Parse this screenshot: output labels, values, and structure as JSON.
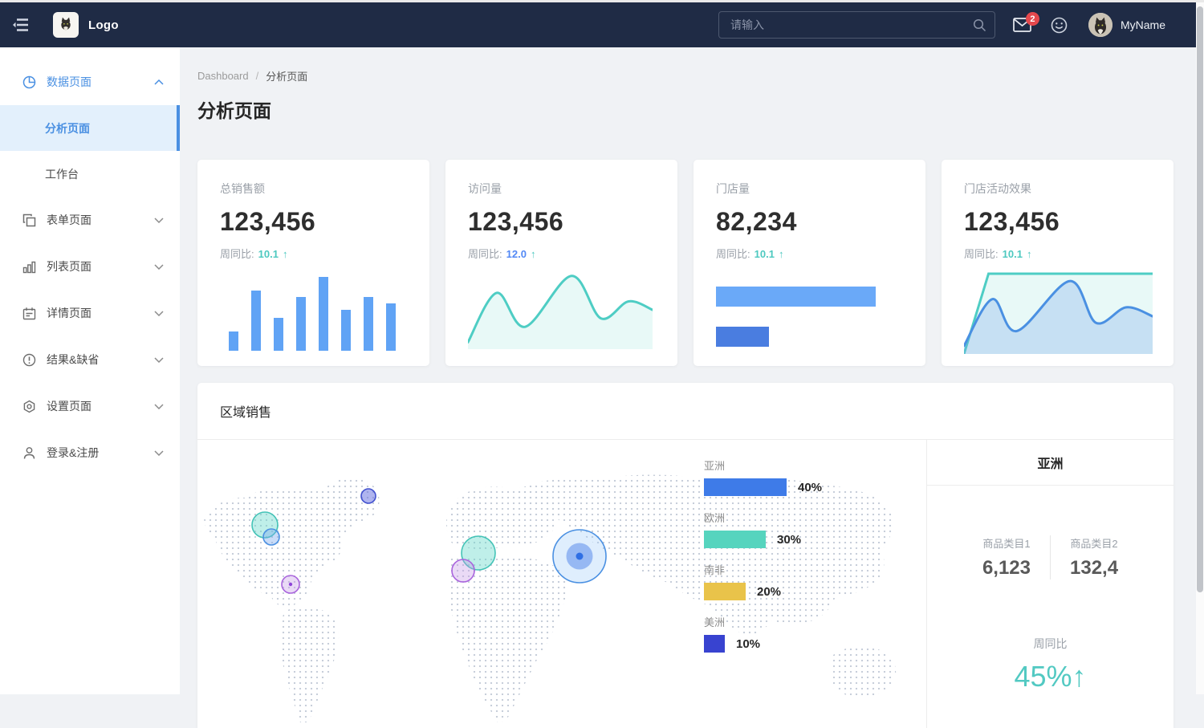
{
  "navbar": {
    "logo_text": "Logo",
    "search_placeholder": "请输入",
    "mail_badge": "2",
    "username": "MyName",
    "icons": [
      "menu-fold-icon",
      "search-icon",
      "mail-icon",
      "smiley-icon",
      "avatar"
    ]
  },
  "sidebar": {
    "items": [
      {
        "label": "数据页面",
        "icon": "pie-chart-icon",
        "expanded": true,
        "children": [
          {
            "label": "分析页面",
            "selected": true
          },
          {
            "label": "工作台",
            "selected": false
          }
        ]
      },
      {
        "label": "表单页面",
        "icon": "form-icon"
      },
      {
        "label": "列表页面",
        "icon": "bar-chart-icon"
      },
      {
        "label": "详情页面",
        "icon": "detail-icon"
      },
      {
        "label": "结果&缺省",
        "icon": "warning-circle-icon"
      },
      {
        "label": "设置页面",
        "icon": "settings-icon"
      },
      {
        "label": "登录&注册",
        "icon": "user-icon"
      }
    ]
  },
  "breadcrumb": {
    "items": [
      "Dashboard",
      "分析页面"
    ],
    "separator": "/"
  },
  "page": {
    "title": "分析页面"
  },
  "cards": [
    {
      "title": "总销售额",
      "value": "123,456",
      "metric_label": "周同比:",
      "metric_value": "10.1",
      "arrow": "↑",
      "metric_color": "#4ec9c0",
      "arrow_color": "#4ec9c0"
    },
    {
      "title": "访问量",
      "value": "123,456",
      "metric_label": "周同比:",
      "metric_value": "12.0",
      "arrow": "↑",
      "metric_color": "#5389f5",
      "arrow_color": "#4ec9c0"
    },
    {
      "title": "门店量",
      "value": "82,234",
      "metric_label": "周同比:",
      "metric_value": "10.1",
      "arrow": "↑",
      "metric_color": "#4ec9c0",
      "arrow_color": "#4ec9c0"
    },
    {
      "title": "门店活动效果",
      "value": "123,456",
      "metric_label": "周同比:",
      "metric_value": "10.1",
      "arrow": "↑",
      "metric_color": "#4ec9c0",
      "arrow_color": "#4ec9c0"
    }
  ],
  "region": {
    "section_title": "区域销售",
    "legend": [
      {
        "label": "亚洲",
        "pct": "40%"
      },
      {
        "label": "欧洲",
        "pct": "30%"
      },
      {
        "label": "南非",
        "pct": "20%"
      },
      {
        "label": "美洲",
        "pct": "10%"
      }
    ],
    "detail": {
      "title": "亚洲",
      "stats": [
        {
          "label": "商品类目1",
          "value": "6,123"
        },
        {
          "label": "商品类目2",
          "value": "132,4"
        }
      ],
      "metric_label": "周同比",
      "metric_value": "45%↑"
    }
  },
  "colors": {
    "primary": "#4a90e2",
    "teal": "#4ec9c0",
    "navbar_bg": "#1f2b45",
    "badge_red": "#e5484d",
    "sidebar_selected_bg": "#e3f0fc",
    "content_bg": "#f0f2f5",
    "spark_bar_blue": "#60a3f5"
  },
  "chart_data": [
    {
      "id": "sales-bars",
      "type": "bar",
      "title": "总销售额 sparkline",
      "values": [
        26,
        81,
        45,
        73,
        100,
        55,
        73,
        64
      ],
      "ylim": [
        0,
        100
      ],
      "color": "#60a3f5",
      "grid": false
    },
    {
      "id": "visits-line",
      "type": "area",
      "title": "访问量 sparkline",
      "x": [
        0,
        15.5,
        31,
        56,
        72,
        87,
        100
      ],
      "y": [
        9,
        73,
        29,
        95,
        40,
        62,
        51
      ],
      "ylim": [
        0,
        100
      ],
      "color": "#4ecdc4",
      "fill": "rgba(78,205,196,0.13)",
      "grid": false
    },
    {
      "id": "stores-bars",
      "type": "bar",
      "orientation": "horizontal",
      "title": "门店量 sparkline",
      "values": [
        100,
        33
      ],
      "ylim": [
        0,
        100
      ],
      "colors": [
        "#6aa9f8",
        "#4a7de0"
      ],
      "grid": false
    },
    {
      "id": "activity-lines",
      "type": "area",
      "title": "门店活动效果 sparkline",
      "series": [
        {
          "name": "cap",
          "x": [
            0,
            13,
            100
          ],
          "y": [
            0,
            98,
            98
          ],
          "color": "#4ecdc4",
          "fill": "rgba(78,205,196,0.13)",
          "smooth": false
        },
        {
          "name": "wave",
          "x": [
            0,
            15,
            28,
            56,
            70,
            86,
            100
          ],
          "y": [
            10,
            67,
            28,
            89,
            38,
            57,
            46
          ],
          "color": "#4a90e2",
          "fill": "rgba(110,160,235,0.28)",
          "smooth": true
        }
      ],
      "ylim": [
        0,
        100
      ],
      "grid": false
    },
    {
      "id": "region-bars",
      "type": "bar",
      "orientation": "horizontal",
      "title": "区域销售占比",
      "categories": [
        "亚洲",
        "欧洲",
        "南非",
        "美洲"
      ],
      "values": [
        40,
        30,
        20,
        10
      ],
      "unit": "%",
      "labels_pct": [
        "40%",
        "30%",
        "20%",
        "10%"
      ],
      "colors": [
        "#3e7be8",
        "#56d4be",
        "#e9c34a",
        "#3843d0"
      ],
      "xlim": [
        0,
        40
      ],
      "grid": false,
      "legend_position": "right-of-map"
    },
    {
      "id": "map-bubbles",
      "type": "scatter",
      "title": "区域销售地图气泡",
      "points": [
        {
          "x": 213,
          "y": 70,
          "r": 9,
          "color": "indigo"
        },
        {
          "x": 84,
          "y": 106,
          "r": 16,
          "color": "teal"
        },
        {
          "x": 92,
          "y": 121,
          "r": 10,
          "color": "blue"
        },
        {
          "x": 116,
          "y": 180,
          "r": 11,
          "color": "purple",
          "center_dot": true
        },
        {
          "x": 350,
          "y": 141,
          "r": 21,
          "color": "teal"
        },
        {
          "x": 331,
          "y": 163,
          "r": 14,
          "color": "purple"
        },
        {
          "x": 476,
          "y": 145,
          "r": 33,
          "color": "blue",
          "rings": true
        }
      ]
    }
  ]
}
